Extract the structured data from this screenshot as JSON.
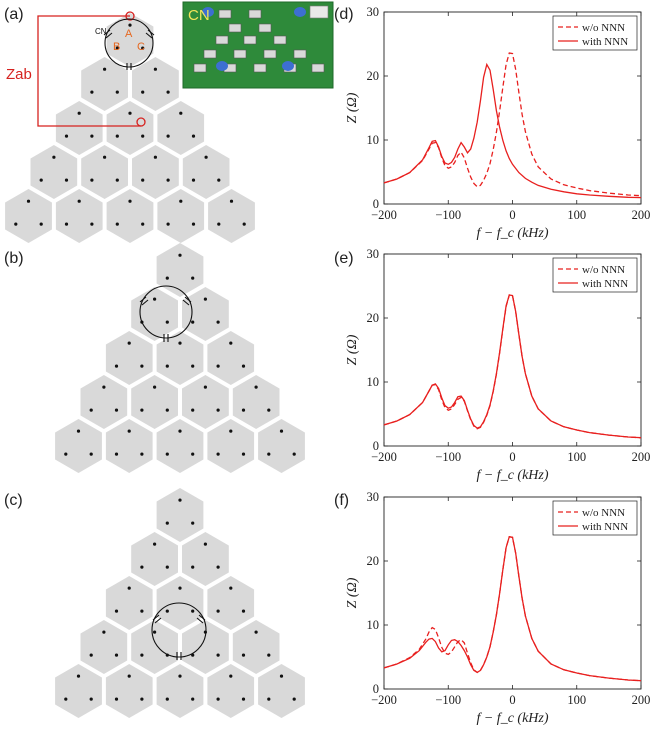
{
  "panel_labels": [
    "(a)",
    "(b)",
    "(c)",
    "(d)",
    "(e)",
    "(f)"
  ],
  "lattice": {
    "zab_label": "Zab",
    "site_a": "A",
    "site_b": "B",
    "site_c": "C",
    "cn_label": "CN",
    "photo_label": "CN"
  },
  "colors": {
    "curve": "#e8201f",
    "hex_fill": "#d9d9d9",
    "annotation": "#d6221f",
    "photo_green": "#2e8a3a"
  },
  "chart_data": [
    {
      "type": "line",
      "panel": "(d)",
      "xlabel": "f − f_c (kHz)",
      "ylabel": "Z (Ω)",
      "xlim": [
        -200,
        200
      ],
      "ylim": [
        0,
        30
      ],
      "xticks": [
        "-200",
        "-100",
        "0",
        "100",
        "200"
      ],
      "yticks": [
        "0",
        "10",
        "20",
        "30"
      ],
      "legend_position": "top-right",
      "series": [
        {
          "name": "w/o NNN",
          "style": "dashed",
          "x": [
            -200,
            -180,
            -160,
            -140,
            -130,
            -125,
            -120,
            -115,
            -110,
            -105,
            -100,
            -95,
            -90,
            -85,
            -80,
            -75,
            -70,
            -65,
            -60,
            -55,
            -50,
            -45,
            -40,
            -35,
            -30,
            -25,
            -20,
            -15,
            -10,
            -5,
            0,
            5,
            10,
            15,
            20,
            30,
            40,
            60,
            80,
            100,
            120,
            150,
            180,
            200
          ],
          "y": [
            3.3,
            3.9,
            4.9,
            6.8,
            8.6,
            9.5,
            9.6,
            8.8,
            7.2,
            6.0,
            5.6,
            5.8,
            6.5,
            7.6,
            8.1,
            7.2,
            5.6,
            4.2,
            3.2,
            2.7,
            2.9,
            3.7,
            4.8,
            6.3,
            8.5,
            11.2,
            14.5,
            18.3,
            21.8,
            23.6,
            23.5,
            21.0,
            17.4,
            14.0,
            11.3,
            7.8,
            5.8,
            3.9,
            3.0,
            2.5,
            2.1,
            1.7,
            1.4,
            1.3
          ]
        },
        {
          "name": "with NNN",
          "style": "solid",
          "x": [
            -200,
            -180,
            -160,
            -140,
            -130,
            -125,
            -120,
            -115,
            -110,
            -105,
            -100,
            -95,
            -90,
            -85,
            -80,
            -75,
            -70,
            -65,
            -60,
            -55,
            -50,
            -45,
            -40,
            -35,
            -30,
            -25,
            -20,
            -15,
            -10,
            -5,
            0,
            10,
            20,
            30,
            40,
            60,
            80,
            100,
            120,
            150,
            180,
            200
          ],
          "y": [
            3.3,
            3.9,
            4.9,
            6.9,
            8.8,
            9.8,
            9.9,
            8.9,
            7.4,
            6.4,
            6.2,
            6.5,
            7.3,
            8.6,
            9.6,
            8.9,
            8.0,
            8.6,
            10.3,
            12.8,
            16.1,
            19.8,
            21.8,
            20.9,
            17.9,
            14.6,
            12.0,
            9.9,
            8.3,
            7.1,
            6.2,
            4.9,
            4.0,
            3.4,
            2.9,
            2.3,
            1.9,
            1.6,
            1.4,
            1.2,
            1.05,
            1.0
          ]
        }
      ]
    },
    {
      "type": "line",
      "panel": "(e)",
      "xlabel": "f − f_c (kHz)",
      "ylabel": "Z (Ω)",
      "xlim": [
        -200,
        200
      ],
      "ylim": [
        0,
        30
      ],
      "xticks": [
        "-200",
        "-100",
        "0",
        "100",
        "200"
      ],
      "yticks": [
        "0",
        "10",
        "20",
        "30"
      ],
      "legend_position": "top-right",
      "series": [
        {
          "name": "w/o NNN",
          "style": "dashed",
          "x": [
            -200,
            -180,
            -160,
            -140,
            -130,
            -125,
            -120,
            -115,
            -110,
            -105,
            -100,
            -95,
            -90,
            -85,
            -80,
            -75,
            -70,
            -65,
            -60,
            -55,
            -50,
            -45,
            -40,
            -35,
            -30,
            -25,
            -20,
            -15,
            -10,
            -5,
            0,
            5,
            10,
            15,
            20,
            30,
            40,
            60,
            80,
            100,
            120,
            150,
            180,
            200
          ],
          "y": [
            3.3,
            3.9,
            4.9,
            6.8,
            8.6,
            9.5,
            9.6,
            8.8,
            7.2,
            6.0,
            5.6,
            5.8,
            6.5,
            7.3,
            7.6,
            7.0,
            5.5,
            4.1,
            3.1,
            2.7,
            2.9,
            3.7,
            4.8,
            6.3,
            8.5,
            11.2,
            14.5,
            18.3,
            21.8,
            23.6,
            23.5,
            21.0,
            17.4,
            14.0,
            11.3,
            7.8,
            5.8,
            3.9,
            3.0,
            2.5,
            2.1,
            1.7,
            1.4,
            1.3
          ]
        },
        {
          "name": "with NNN",
          "style": "solid",
          "x": [
            -200,
            -180,
            -160,
            -140,
            -130,
            -125,
            -120,
            -115,
            -110,
            -105,
            -100,
            -95,
            -90,
            -85,
            -80,
            -75,
            -70,
            -65,
            -60,
            -55,
            -50,
            -45,
            -40,
            -35,
            -30,
            -25,
            -20,
            -15,
            -10,
            -5,
            0,
            5,
            10,
            15,
            20,
            30,
            40,
            60,
            80,
            100,
            120,
            150,
            180,
            200
          ],
          "y": [
            3.3,
            3.9,
            4.9,
            6.8,
            8.6,
            9.5,
            9.7,
            9.0,
            7.5,
            6.3,
            5.9,
            6.1,
            6.8,
            7.7,
            7.8,
            7.1,
            5.6,
            4.2,
            3.2,
            2.8,
            3.0,
            3.8,
            4.9,
            6.4,
            8.6,
            11.3,
            14.6,
            18.4,
            21.9,
            23.6,
            23.5,
            21.0,
            17.4,
            14.0,
            11.3,
            7.8,
            5.8,
            3.9,
            3.0,
            2.5,
            2.1,
            1.7,
            1.4,
            1.3
          ]
        }
      ]
    },
    {
      "type": "line",
      "panel": "(f)",
      "xlabel": "f − f_c (kHz)",
      "ylabel": "Z (Ω)",
      "xlim": [
        -200,
        200
      ],
      "ylim": [
        0,
        30
      ],
      "xticks": [
        "-200",
        "-100",
        "0",
        "100",
        "200"
      ],
      "yticks": [
        "0",
        "10",
        "20",
        "30"
      ],
      "legend_position": "top-right",
      "series": [
        {
          "name": "w/o NNN",
          "style": "dashed",
          "x": [
            -200,
            -180,
            -160,
            -145,
            -135,
            -130,
            -125,
            -120,
            -115,
            -110,
            -105,
            -100,
            -95,
            -90,
            -85,
            -80,
            -75,
            -70,
            -65,
            -60,
            -55,
            -50,
            -45,
            -40,
            -35,
            -30,
            -25,
            -20,
            -15,
            -10,
            -5,
            0,
            5,
            10,
            15,
            20,
            30,
            40,
            60,
            80,
            100,
            120,
            150,
            180,
            200
          ],
          "y": [
            3.3,
            3.9,
            4.9,
            6.2,
            7.8,
            8.9,
            9.6,
            9.3,
            8.0,
            6.5,
            5.6,
            5.4,
            5.8,
            6.6,
            7.4,
            7.7,
            7.2,
            5.6,
            4.1,
            3.0,
            2.6,
            2.9,
            3.8,
            5.0,
            6.6,
            8.9,
            11.6,
            14.9,
            18.7,
            22.1,
            23.8,
            23.7,
            21.2,
            17.6,
            14.2,
            11.4,
            7.9,
            5.9,
            3.9,
            3.0,
            2.5,
            2.1,
            1.7,
            1.4,
            1.3
          ]
        },
        {
          "name": "with NNN",
          "style": "solid",
          "x": [
            -200,
            -180,
            -160,
            -145,
            -135,
            -130,
            -125,
            -120,
            -115,
            -110,
            -105,
            -100,
            -95,
            -90,
            -85,
            -80,
            -75,
            -70,
            -65,
            -60,
            -55,
            -50,
            -45,
            -40,
            -35,
            -30,
            -25,
            -20,
            -15,
            -10,
            -5,
            0,
            5,
            10,
            15,
            20,
            30,
            40,
            60,
            80,
            100,
            120,
            150,
            180,
            200
          ],
          "y": [
            3.3,
            3.9,
            4.8,
            6.0,
            7.3,
            7.8,
            7.9,
            7.4,
            6.4,
            5.8,
            6.0,
            6.9,
            7.6,
            7.7,
            7.4,
            6.8,
            6.0,
            5.0,
            3.8,
            2.9,
            2.6,
            2.9,
            3.8,
            5.0,
            6.6,
            8.9,
            11.6,
            14.9,
            18.7,
            22.1,
            23.8,
            23.7,
            21.2,
            17.6,
            14.2,
            11.4,
            7.9,
            5.9,
            3.9,
            3.0,
            2.5,
            2.1,
            1.7,
            1.4,
            1.3
          ]
        }
      ]
    }
  ]
}
